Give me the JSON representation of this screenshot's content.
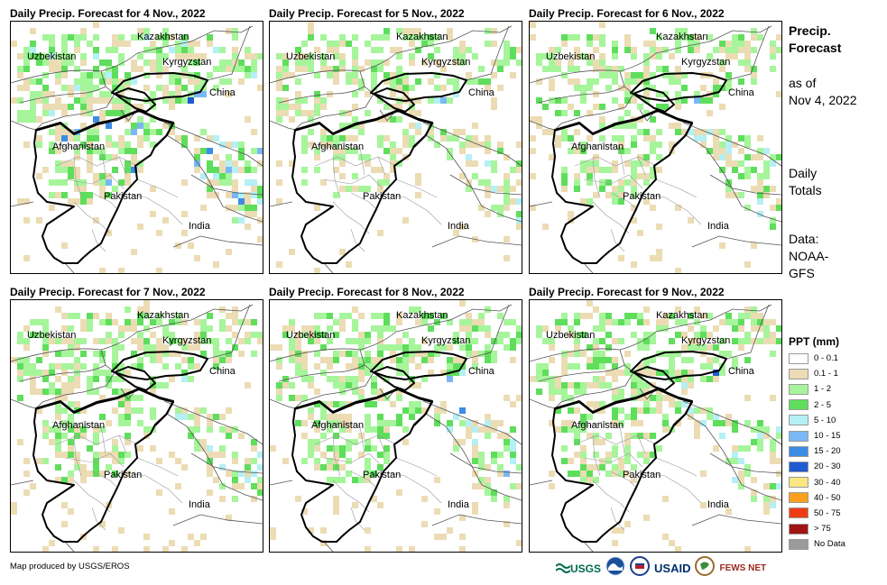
{
  "panels": [
    {
      "title": "Daily Precip. Forecast for 4 Nov., 2022",
      "intensity": 1.0
    },
    {
      "title": "Daily Precip. Forecast for 5 Nov., 2022",
      "intensity": 0.5
    },
    {
      "title": "Daily Precip. Forecast for 6 Nov., 2022",
      "intensity": 0.7
    },
    {
      "title": "Daily Precip. Forecast for 7 Nov., 2022",
      "intensity": 0.8
    },
    {
      "title": "Daily Precip. Forecast for 8 Nov., 2022",
      "intensity": 0.85
    },
    {
      "title": "Daily Precip. Forecast for 9 Nov., 2022",
      "intensity": 0.75
    }
  ],
  "map_labels": {
    "kazakhstan": "Kazakhstan",
    "uzbekistan": "Uzbekistan",
    "kyrgyzstan": "Kyrgyzstan",
    "china": "China",
    "afghanistan": "Afghanistan",
    "pakistan": "Pakistan",
    "india": "India"
  },
  "side": {
    "title_line1": "Precip.",
    "title_line2": "Forecast",
    "asof_line1": "as of",
    "asof_line2": "Nov 4, 2022",
    "daily_line1": "Daily",
    "daily_line2": "Totals",
    "data_line1": "Data:",
    "data_line2": "NOAA-",
    "data_line3": "GFS"
  },
  "legend": {
    "title": "PPT (mm)",
    "items": [
      {
        "label": "0 - 0.1",
        "color": "#ffffff"
      },
      {
        "label": "0.1 - 1",
        "color": "#ecdcb4"
      },
      {
        "label": "1 - 2",
        "color": "#a6f59b"
      },
      {
        "label": "2 - 5",
        "color": "#5fde5c"
      },
      {
        "label": "5 - 10",
        "color": "#b4f0f5"
      },
      {
        "label": "10 - 15",
        "color": "#7ab8f5"
      },
      {
        "label": "15 - 20",
        "color": "#3c8ce6"
      },
      {
        "label": "20 - 30",
        "color": "#1e5ad2"
      },
      {
        "label": "30 - 40",
        "color": "#fae682"
      },
      {
        "label": "40 - 50",
        "color": "#faa01e"
      },
      {
        "label": "50 - 75",
        "color": "#f03c14"
      },
      {
        "label": "> 75",
        "color": "#a01414"
      },
      {
        "label": "No Data",
        "color": "#9b9b9b"
      }
    ]
  },
  "credit": "Map produced by USGS/EROS",
  "logos": {
    "usgs": "USGS",
    "usaid": "USAID",
    "fewsnet": "FEWS NET"
  }
}
